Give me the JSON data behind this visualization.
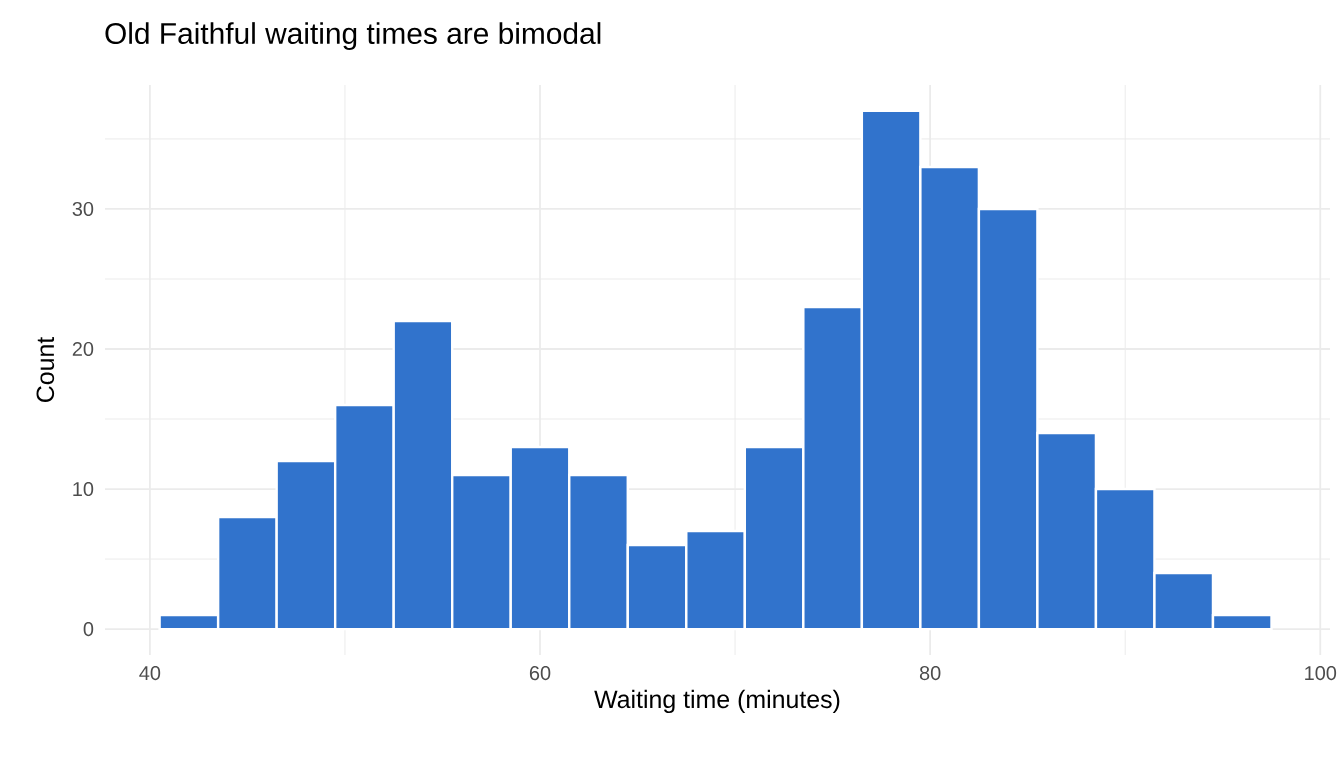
{
  "chart_data": {
    "type": "histogram",
    "title": "Old Faithful waiting times are bimodal",
    "xlabel": "Waiting time (minutes)",
    "ylabel": "Count",
    "bins": [
      40.5,
      43.5,
      46.5,
      49.5,
      52.5,
      55.5,
      58.5,
      61.5,
      64.5,
      67.5,
      70.5,
      73.5,
      76.5,
      79.5,
      82.5,
      85.5,
      88.5,
      91.5,
      94.5,
      97.5
    ],
    "values": [
      1,
      8,
      12,
      16,
      22,
      11,
      13,
      11,
      6,
      7,
      13,
      23,
      37,
      33,
      30,
      14,
      10,
      4,
      1
    ],
    "color": "#3173cc",
    "xlim": [
      37.7,
      100.5
    ],
    "ylim": [
      -1.85,
      38.85
    ],
    "xticks": [
      40,
      60,
      80,
      100
    ],
    "yticks": [
      0,
      10,
      20,
      30
    ],
    "grid": true
  }
}
